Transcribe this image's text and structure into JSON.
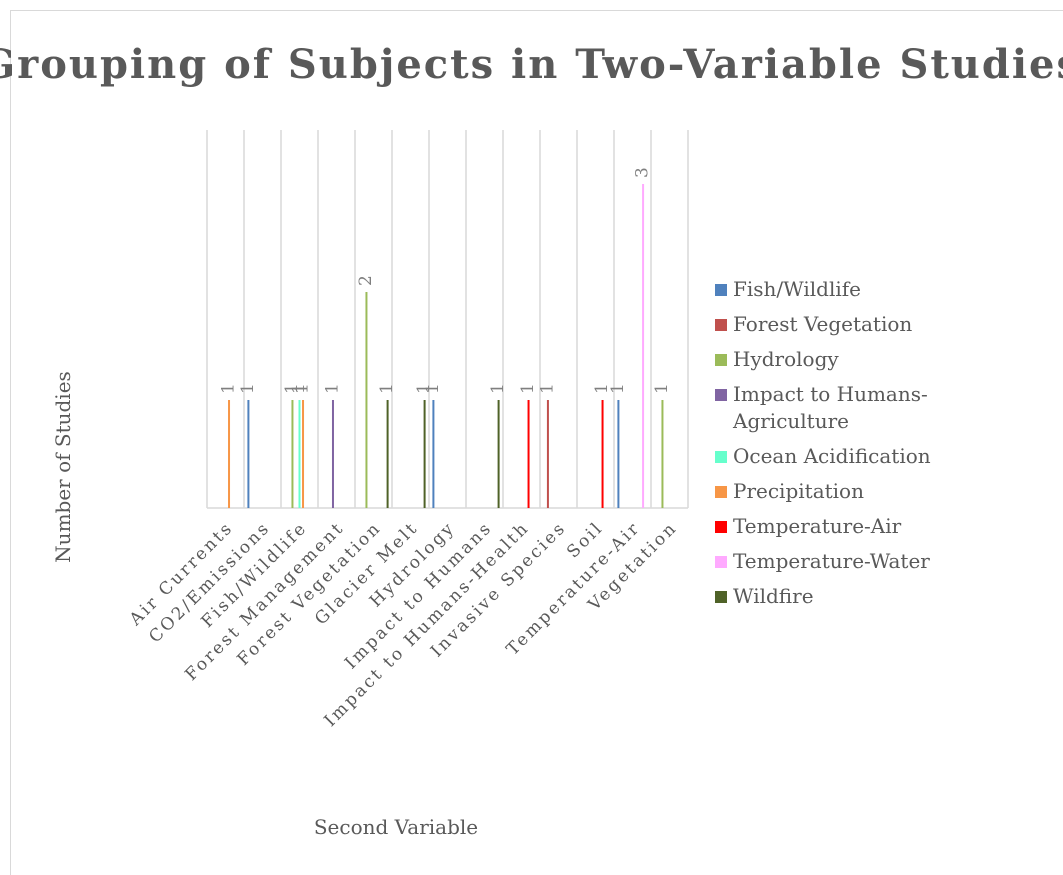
{
  "chart_data": {
    "type": "bar",
    "title": "Grouping of Subjects in Two-Variable Studies",
    "x_label": "Second Variable",
    "y_label": "Number of Studies",
    "categories": [
      "Air Currents",
      "CO2/Emissions",
      "Fish/Wildlife",
      "Forest Management",
      "Forest Vegetation",
      "Glacier Melt",
      "Hydrology",
      "Impact to Humans",
      "Impact to Humans-Health",
      "Invasive Species",
      "Soil",
      "Temperature-Air",
      "Vegetation"
    ],
    "series": [
      {
        "name": "Fish/Wildlife",
        "color": "#4f81bd",
        "values": [
          null,
          1,
          null,
          null,
          null,
          null,
          1,
          null,
          null,
          null,
          null,
          1,
          null
        ]
      },
      {
        "name": "Forest Vegetation",
        "color": "#c0504d",
        "values": [
          null,
          null,
          null,
          null,
          null,
          null,
          null,
          null,
          null,
          1,
          null,
          null,
          null
        ]
      },
      {
        "name": "Hydrology",
        "color": "#9bbb59",
        "values": [
          null,
          null,
          1,
          null,
          2,
          null,
          null,
          null,
          null,
          null,
          null,
          null,
          1
        ]
      },
      {
        "name": "Impact to Humans-Agriculture",
        "color": "#8064a2",
        "values": [
          null,
          null,
          null,
          1,
          null,
          null,
          null,
          null,
          null,
          null,
          null,
          null,
          null
        ]
      },
      {
        "name": "Ocean Acidification",
        "color": "#66ffcc",
        "values": [
          null,
          null,
          1,
          null,
          null,
          null,
          null,
          null,
          null,
          null,
          null,
          null,
          null
        ]
      },
      {
        "name": "Precipitation",
        "color": "#f79646",
        "values": [
          1,
          null,
          1,
          null,
          null,
          null,
          null,
          null,
          null,
          null,
          null,
          null,
          null
        ]
      },
      {
        "name": "Temperature-Air",
        "color": "#ff0000",
        "values": [
          null,
          null,
          null,
          null,
          null,
          null,
          null,
          null,
          1,
          null,
          1,
          null,
          null
        ]
      },
      {
        "name": "Temperature-Water",
        "color": "#ffaaff",
        "values": [
          null,
          null,
          null,
          null,
          null,
          null,
          null,
          null,
          null,
          null,
          null,
          3,
          null
        ]
      },
      {
        "name": "Wildfire",
        "color": "#4f6228",
        "values": [
          null,
          null,
          null,
          null,
          1,
          1,
          null,
          1,
          null,
          null,
          null,
          null,
          null
        ]
      }
    ],
    "ylim": [
      0,
      3.5
    ],
    "legend": "right"
  }
}
